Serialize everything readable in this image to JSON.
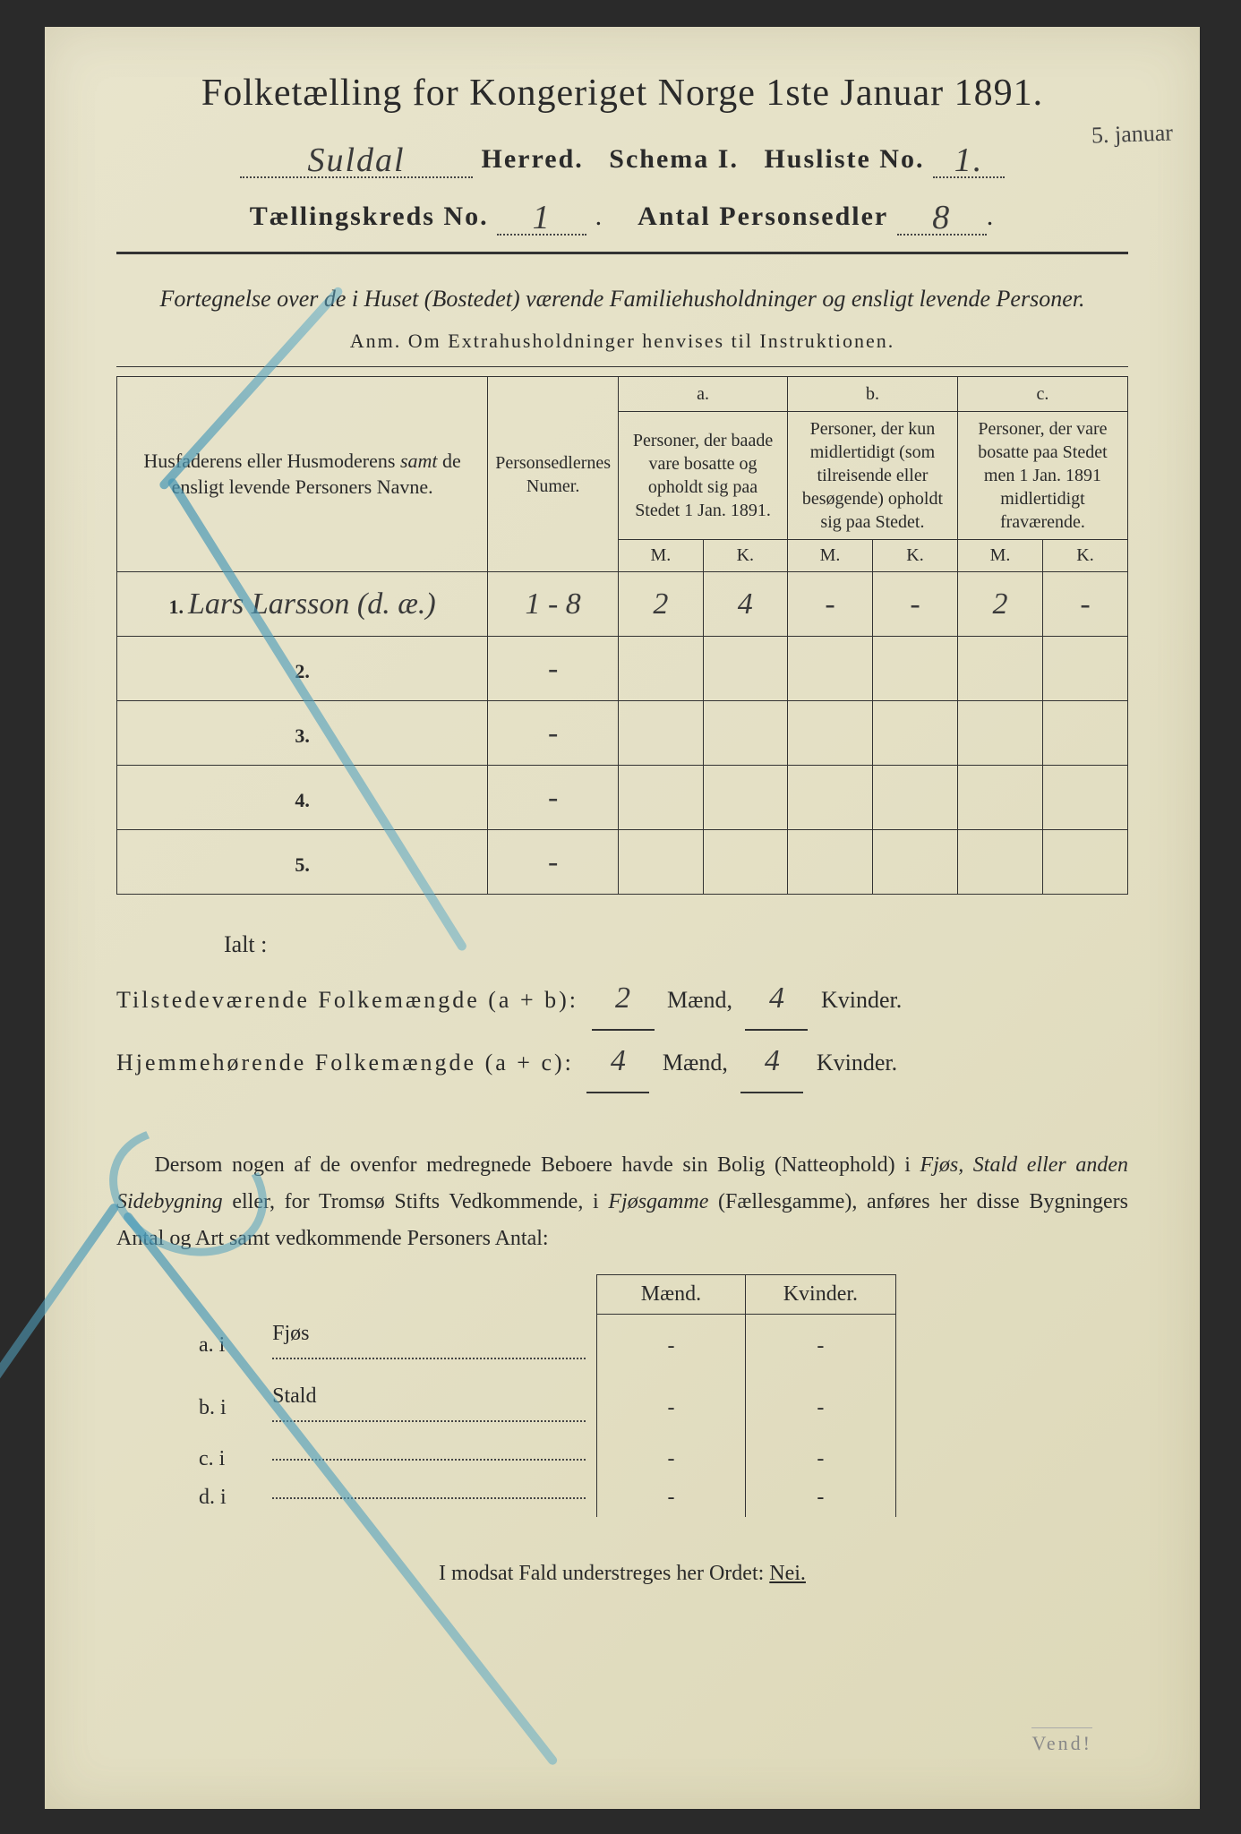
{
  "title": "Folketælling for Kongeriget Norge 1ste Januar 1891.",
  "header": {
    "herred_value": "Suldal",
    "herred_label": "Herred.",
    "schema_label": "Schema I.",
    "husliste_label": "Husliste No.",
    "husliste_value": "1.",
    "kreds_label": "Tællingskreds No.",
    "kreds_value": "1",
    "antal_label": "Antal Personsedler",
    "antal_value": "8",
    "margin_note": "5. januar"
  },
  "subtitle": "Fortegnelse over de i Huset (Bostedet) værende Familiehusholdninger og ensligt levende Personer.",
  "anm": "Anm.  Om Extrahusholdninger henvises til Instruktionen.",
  "table": {
    "col_name": "Husfaderens eller Husmoderens samt de ensligt levende Personers Navne.",
    "col_num": "Personsedlernes Numer.",
    "col_a_top": "a.",
    "col_a": "Personer, der baade vare bosatte og opholdt sig paa Stedet 1 Jan. 1891.",
    "col_b_top": "b.",
    "col_b": "Personer, der kun midlertidigt (som tilreisende eller besøgende) opholdt sig paa Stedet.",
    "col_c_top": "c.",
    "col_c": "Personer, der vare bosatte paa Stedet men 1 Jan. 1891 midlertidigt fraværende.",
    "m": "M.",
    "k": "K.",
    "rows": [
      {
        "n": "1.",
        "name": "Lars Larsson (d. æ.)",
        "num": "1 - 8",
        "am": "2",
        "ak": "4",
        "bm": "-",
        "bk": "-",
        "cm": "2",
        "ck": "-"
      },
      {
        "n": "2.",
        "name": "",
        "num": "-",
        "am": "",
        "ak": "",
        "bm": "",
        "bk": "",
        "cm": "",
        "ck": ""
      },
      {
        "n": "3.",
        "name": "",
        "num": "-",
        "am": "",
        "ak": "",
        "bm": "",
        "bk": "",
        "cm": "",
        "ck": ""
      },
      {
        "n": "4.",
        "name": "",
        "num": "-",
        "am": "",
        "ak": "",
        "bm": "",
        "bk": "",
        "cm": "",
        "ck": ""
      },
      {
        "n": "5.",
        "name": "",
        "num": "-",
        "am": "",
        "ak": "",
        "bm": "",
        "bk": "",
        "cm": "",
        "ck": ""
      }
    ]
  },
  "totals": {
    "ialt": "Ialt :",
    "line1_label": "Tilstedeværende Folkemængde (a + b):",
    "line1_m": "2",
    "line1_k": "4",
    "line2_label": "Hjemmehørende Folkemængde (a + c):",
    "line2_m": "4",
    "line2_k": "4",
    "maend": "Mænd,",
    "kvinder": "Kvinder."
  },
  "body": {
    "para": "Dersom nogen af de ovenfor medregnede Beboere havde sin Bolig (Natteophold) i Fjøs, Stald eller anden Sidebygning eller, for Tromsø Stifts Vedkommende, i Fjøsgamme (Fællesgamme), anføres her disse Bygningers Antal og Art samt vedkommende Personers Antal:",
    "maend": "Mænd.",
    "kvinder": "Kvinder.",
    "rows": [
      {
        "k": "a.  i",
        "label": "Fjøs",
        "m": "-",
        "kv": "-"
      },
      {
        "k": "b.  i",
        "label": "Stald",
        "m": "-",
        "kv": "-"
      },
      {
        "k": "c.  i",
        "label": "",
        "m": "-",
        "kv": "-"
      },
      {
        "k": "d.  i",
        "label": "",
        "m": "-",
        "kv": "-"
      }
    ]
  },
  "footer": "I modsat Fald understreges her Ordet:",
  "nei": "Nei.",
  "vend": "Vend!",
  "colors": {
    "paper": "#e4e0c5",
    "ink": "#2a2a2a",
    "pencil_blue": "#5aa6c0"
  }
}
